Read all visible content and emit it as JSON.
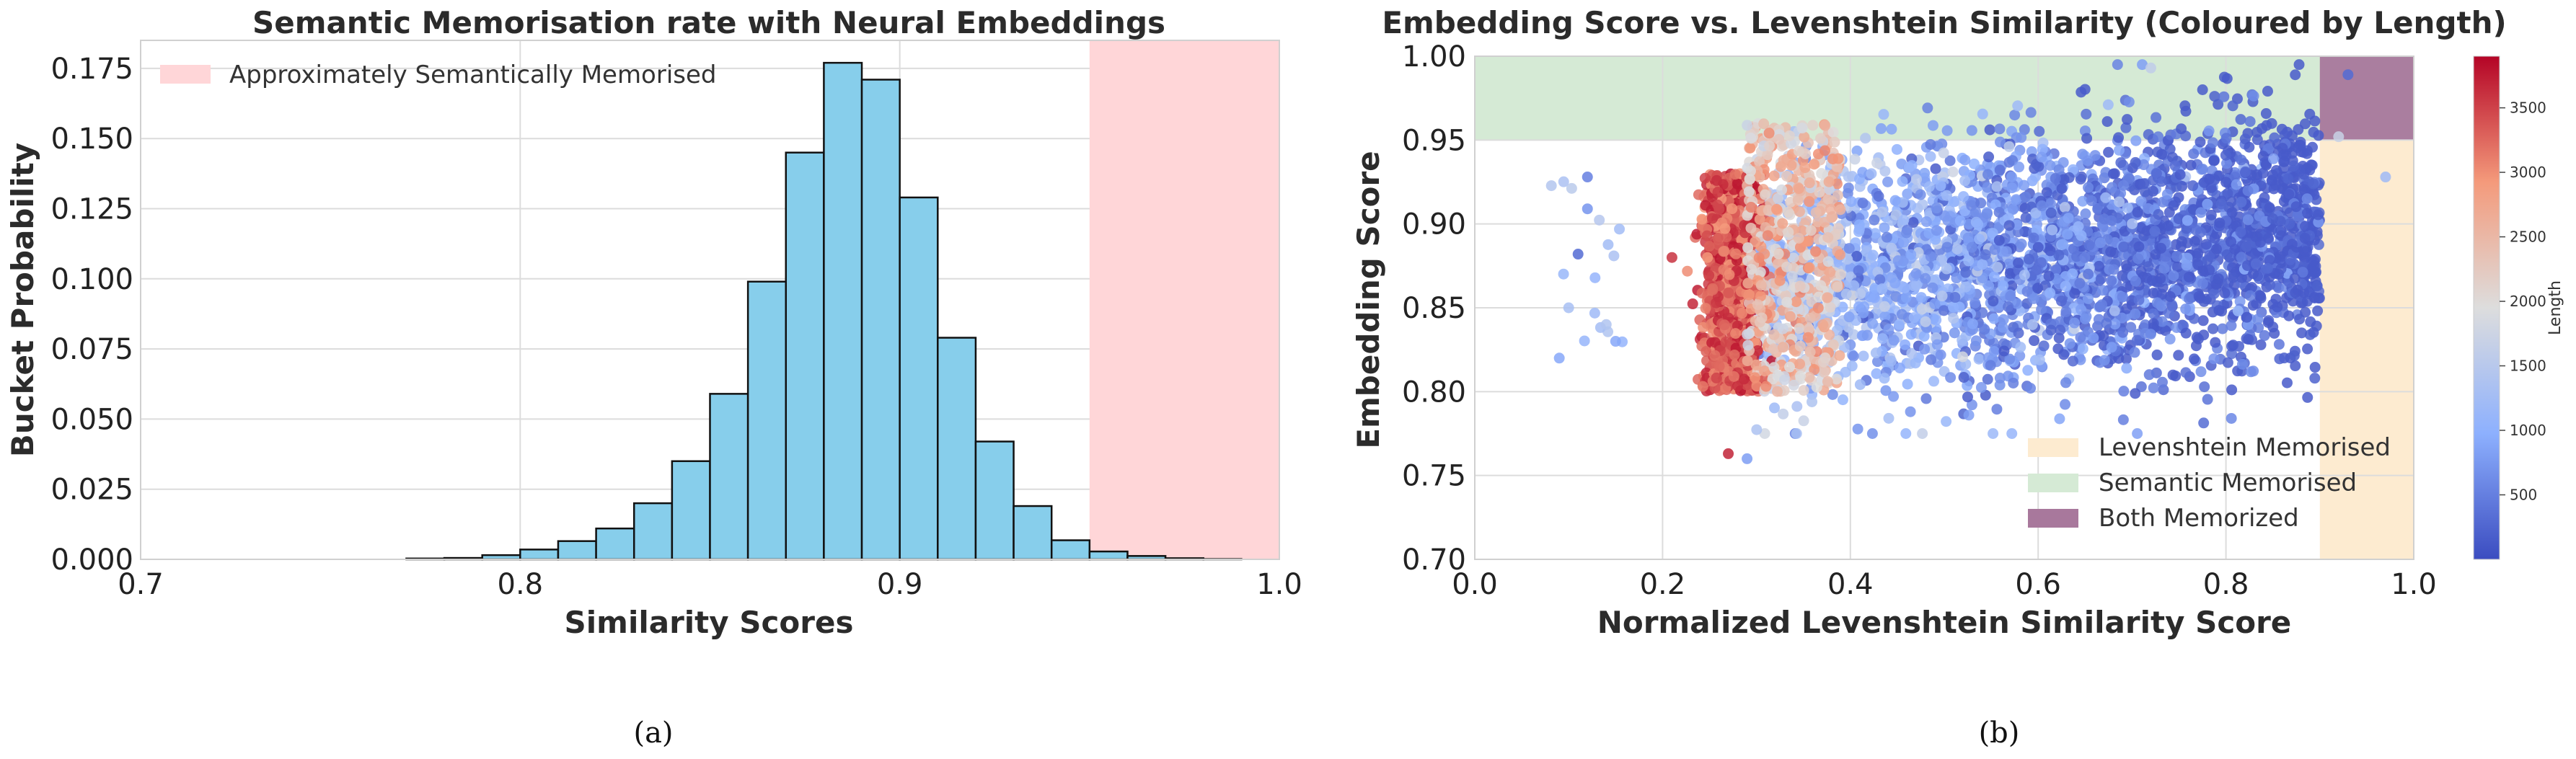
{
  "chart_data": [
    {
      "type": "bar",
      "title": "Semantic Memorisation rate with Neural Embeddings",
      "xlabel": "Similarity Scores",
      "ylabel": "Bucket Probability",
      "xlim": [
        0.7,
        1.0
      ],
      "ylim": [
        0.0,
        0.185
      ],
      "xticks": [
        "0.7",
        "0.8",
        "0.9",
        "1.0"
      ],
      "yticks": [
        "0.000",
        "0.025",
        "0.050",
        "0.075",
        "0.100",
        "0.125",
        "0.150",
        "0.175"
      ],
      "bin_width": 0.01,
      "bin_starts": [
        0.77,
        0.78,
        0.79,
        0.8,
        0.81,
        0.82,
        0.83,
        0.84,
        0.85,
        0.86,
        0.87,
        0.88,
        0.89,
        0.9,
        0.91,
        0.92,
        0.93,
        0.94,
        0.95,
        0.96,
        0.97,
        0.98,
        0.99
      ],
      "values": [
        0.0003,
        0.0005,
        0.0015,
        0.0035,
        0.0065,
        0.011,
        0.02,
        0.035,
        0.059,
        0.099,
        0.145,
        0.177,
        0.171,
        0.129,
        0.079,
        0.042,
        0.019,
        0.0068,
        0.0028,
        0.0012,
        0.0004,
        0.0001,
        0.0
      ],
      "bar_color": "#87CEEB",
      "shaded_region": {
        "x": [
          0.95,
          1.0
        ],
        "color": "#FFD6D8",
        "label": "Approximately Semantically Memorised"
      },
      "legend_position": "top-left",
      "grid": true
    },
    {
      "type": "scatter",
      "title": "Embedding Score vs. Levenshtein Similarity (Coloured by Length)",
      "xlabel": "Normalized Levenshtein Similarity Score",
      "ylabel": "Embedding Score",
      "xlim": [
        0.0,
        1.0
      ],
      "ylim": [
        0.7,
        1.0
      ],
      "xticks": [
        "0.0",
        "0.2",
        "0.4",
        "0.6",
        "0.8",
        "1.0"
      ],
      "yticks": [
        "0.70",
        "0.75",
        "0.80",
        "0.85",
        "0.90",
        "0.95",
        "1.00"
      ],
      "colormap": "coolwarm",
      "colorbar": {
        "label": "Length",
        "range": [
          0,
          3900
        ],
        "ticks": [
          "500",
          "1000",
          "1500",
          "2000",
          "2500",
          "3000",
          "3500"
        ]
      },
      "regions": [
        {
          "label": "Levenshtein Memorised",
          "x": [
            0.9,
            1.0
          ],
          "y": [
            0.7,
            1.0
          ],
          "color": "#FDEBD0"
        },
        {
          "label": "Semantic Memorised",
          "x": [
            0.0,
            1.0
          ],
          "y": [
            0.95,
            1.0
          ],
          "color": "#D5EAD5"
        },
        {
          "label": "Both Memorized",
          "x": [
            0.9,
            1.0
          ],
          "y": [
            0.95,
            1.0
          ],
          "color": "#A8789C"
        }
      ],
      "legend_position": "lower-right",
      "grid": true,
      "cluster_summary": {
        "high_length_band": {
          "x": [
            0.25,
            0.3
          ],
          "y": [
            0.76,
            0.95
          ],
          "length": "approx 3500"
        },
        "main_cloud": {
          "x": [
            0.3,
            0.9
          ],
          "y": [
            0.78,
            0.99
          ],
          "length": "approx 500-2000"
        },
        "sparse_left": {
          "x": [
            0.08,
            0.16
          ],
          "y": [
            0.82,
            0.93
          ],
          "length": "approx 1200"
        }
      },
      "sample_points": [
        {
          "x": 0.11,
          "y": 0.882,
          "len": 300
        },
        {
          "x": 0.12,
          "y": 0.928,
          "len": 500
        },
        {
          "x": 0.12,
          "y": 0.909,
          "len": 700
        },
        {
          "x": 0.09,
          "y": 0.82,
          "len": 900
        },
        {
          "x": 0.1,
          "y": 0.85,
          "len": 1300
        },
        {
          "x": 0.14,
          "y": 0.84,
          "len": 1400
        },
        {
          "x": 0.15,
          "y": 0.83,
          "len": 900
        },
        {
          "x": 0.21,
          "y": 0.88,
          "len": 3600
        },
        {
          "x": 0.27,
          "y": 0.763,
          "len": 3700
        },
        {
          "x": 0.29,
          "y": 0.76,
          "len": 800
        },
        {
          "x": 0.93,
          "y": 0.989,
          "len": 300
        },
        {
          "x": 0.97,
          "y": 0.928,
          "len": 1200
        },
        {
          "x": 0.72,
          "y": 0.993,
          "len": 1600
        },
        {
          "x": 0.92,
          "y": 0.952,
          "len": 1700
        }
      ]
    }
  ],
  "captions": [
    "(a)",
    "(b)"
  ]
}
